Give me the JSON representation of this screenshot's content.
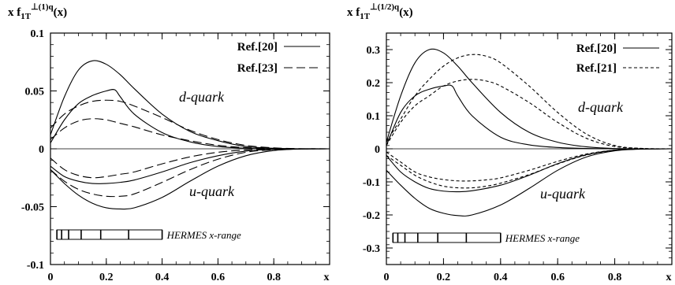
{
  "chart_data": [
    {
      "type": "line",
      "ylabel": "x f_1T^⊥(1)q(x)",
      "ylabel_main": "x f",
      "ylabel_sub": "1T",
      "ylabel_sup": "⊥(1)q",
      "ylabel_tail": "(x)",
      "xlabel": "x",
      "xlim": [
        0,
        1
      ],
      "ylim": [
        -0.1,
        0.1
      ],
      "xticks": [
        "0",
        "0.2",
        "0.4",
        "0.6",
        "0.8"
      ],
      "yticks": [
        "-0.1",
        "-0.05",
        "0",
        "0.05",
        "0.1"
      ],
      "ytick_values": [
        -0.1,
        -0.05,
        0,
        0.05,
        0.1
      ],
      "legend": [
        {
          "label": "Ref.[20]",
          "style": "solid"
        },
        {
          "label": "Ref.[23]",
          "style": "long-dash"
        }
      ],
      "annotations": [
        "d-quark",
        "u-quark"
      ],
      "hermes_label": "HERMES x-range",
      "hermes_range": [
        0.023,
        0.4
      ],
      "hermes_bins": [
        0.023,
        0.04,
        0.065,
        0.11,
        0.18,
        0.28,
        0.4
      ],
      "series": [
        {
          "style": "solid",
          "x": [
            0,
            0.05,
            0.1,
            0.15,
            0.2,
            0.25,
            0.3,
            0.4,
            0.5,
            0.6,
            0.7,
            0.8,
            0.9,
            1.0
          ],
          "y": [
            0.012,
            0.045,
            0.068,
            0.076,
            0.073,
            0.064,
            0.052,
            0.03,
            0.015,
            0.007,
            0.002,
            0.0005,
            0,
            0
          ]
        },
        {
          "style": "solid",
          "x": [
            0,
            0.05,
            0.1,
            0.15,
            0.2,
            0.23,
            0.25,
            0.3,
            0.4,
            0.5,
            0.6,
            0.7,
            0.8,
            0.9,
            1.0
          ],
          "y": [
            0.005,
            0.025,
            0.039,
            0.046,
            0.05,
            0.051,
            0.045,
            0.03,
            0.014,
            0.006,
            0.002,
            0.0005,
            0,
            0,
            0
          ]
        },
        {
          "style": "long-dash",
          "x": [
            0,
            0.05,
            0.1,
            0.15,
            0.2,
            0.25,
            0.3,
            0.4,
            0.5,
            0.6,
            0.7,
            0.8,
            0.9,
            1.0
          ],
          "y": [
            0.018,
            0.03,
            0.037,
            0.041,
            0.042,
            0.041,
            0.037,
            0.027,
            0.016,
            0.008,
            0.003,
            0.0008,
            0.0001,
            0
          ]
        },
        {
          "style": "long-dash",
          "x": [
            0,
            0.05,
            0.1,
            0.15,
            0.2,
            0.25,
            0.3,
            0.4,
            0.5,
            0.6,
            0.7,
            0.8,
            0.9,
            1.0
          ],
          "y": [
            0.008,
            0.018,
            0.024,
            0.026,
            0.025,
            0.022,
            0.019,
            0.012,
            0.007,
            0.003,
            0.001,
            0.0003,
            0,
            0
          ]
        },
        {
          "style": "solid",
          "x": [
            0,
            0.05,
            0.1,
            0.15,
            0.2,
            0.25,
            0.3,
            0.4,
            0.5,
            0.6,
            0.7,
            0.8,
            0.9,
            1.0
          ],
          "y": [
            -0.015,
            -0.024,
            -0.028,
            -0.03,
            -0.03,
            -0.029,
            -0.027,
            -0.02,
            -0.012,
            -0.006,
            -0.002,
            -0.0005,
            0,
            0
          ]
        },
        {
          "style": "solid",
          "x": [
            0,
            0.05,
            0.1,
            0.15,
            0.2,
            0.25,
            0.3,
            0.4,
            0.5,
            0.6,
            0.7,
            0.8,
            0.9,
            1.0
          ],
          "y": [
            -0.018,
            -0.03,
            -0.04,
            -0.047,
            -0.051,
            -0.052,
            -0.051,
            -0.042,
            -0.028,
            -0.015,
            -0.006,
            -0.0015,
            -0.0002,
            0
          ]
        },
        {
          "style": "long-dash",
          "x": [
            0,
            0.05,
            0.1,
            0.15,
            0.2,
            0.25,
            0.3,
            0.4,
            0.5,
            0.6,
            0.7,
            0.8,
            0.9,
            1.0
          ],
          "y": [
            -0.008,
            -0.018,
            -0.023,
            -0.025,
            -0.024,
            -0.022,
            -0.02,
            -0.013,
            -0.007,
            -0.003,
            -0.001,
            -0.0003,
            0,
            0
          ]
        },
        {
          "style": "long-dash",
          "x": [
            0,
            0.05,
            0.1,
            0.15,
            0.2,
            0.25,
            0.3,
            0.4,
            0.5,
            0.6,
            0.7,
            0.8,
            0.9,
            1.0
          ],
          "y": [
            -0.018,
            -0.028,
            -0.035,
            -0.039,
            -0.041,
            -0.041,
            -0.039,
            -0.029,
            -0.018,
            -0.009,
            -0.003,
            -0.0008,
            -0.0001,
            0
          ]
        }
      ]
    },
    {
      "type": "line",
      "ylabel": "x f_1T^⊥(1/2)q(x)",
      "ylabel_main": "x f",
      "ylabel_sub": "1T",
      "ylabel_sup": "⊥(1/2)q",
      "ylabel_tail": "(x)",
      "xlabel": "x",
      "xlim": [
        0,
        1
      ],
      "ylim": [
        -0.35,
        0.35
      ],
      "xticks": [
        "0",
        "0.2",
        "0.4",
        "0.6",
        "0.8"
      ],
      "yticks": [
        "-0.3",
        "-0.2",
        "-0.1",
        "0",
        "0.1",
        "0.2",
        "0.3"
      ],
      "ytick_values": [
        -0.3,
        -0.2,
        -0.1,
        0,
        0.1,
        0.2,
        0.3
      ],
      "legend": [
        {
          "label": "Ref.[20]",
          "style": "solid"
        },
        {
          "label": "Ref.[21]",
          "style": "short-dash"
        }
      ],
      "annotations": [
        "d-quark",
        "u-quark"
      ],
      "hermes_label": "HERMES x-range",
      "hermes_range": [
        0.023,
        0.4
      ],
      "hermes_bins": [
        0.023,
        0.04,
        0.065,
        0.11,
        0.18,
        0.28,
        0.4
      ],
      "series": [
        {
          "style": "solid",
          "x": [
            0,
            0.05,
            0.1,
            0.15,
            0.2,
            0.25,
            0.3,
            0.4,
            0.5,
            0.6,
            0.7,
            0.8,
            0.9,
            1.0
          ],
          "y": [
            0.02,
            0.16,
            0.26,
            0.3,
            0.29,
            0.25,
            0.2,
            0.11,
            0.05,
            0.02,
            0.006,
            0.001,
            0,
            0
          ]
        },
        {
          "style": "solid",
          "x": [
            0,
            0.05,
            0.1,
            0.15,
            0.2,
            0.23,
            0.25,
            0.3,
            0.4,
            0.5,
            0.6,
            0.7,
            0.8,
            0.9,
            1.0
          ],
          "y": [
            0.01,
            0.11,
            0.16,
            0.18,
            0.19,
            0.19,
            0.16,
            0.1,
            0.035,
            0.012,
            0.004,
            0.001,
            0,
            0,
            0
          ]
        },
        {
          "style": "short-dash",
          "x": [
            0,
            0.05,
            0.1,
            0.15,
            0.2,
            0.25,
            0.3,
            0.35,
            0.4,
            0.5,
            0.6,
            0.7,
            0.8,
            0.9,
            1.0
          ],
          "y": [
            0.02,
            0.09,
            0.16,
            0.21,
            0.25,
            0.275,
            0.285,
            0.28,
            0.26,
            0.19,
            0.11,
            0.045,
            0.01,
            0.001,
            0
          ]
        },
        {
          "style": "short-dash",
          "x": [
            0,
            0.05,
            0.1,
            0.15,
            0.2,
            0.25,
            0.3,
            0.35,
            0.4,
            0.5,
            0.6,
            0.7,
            0.8,
            0.9,
            1.0
          ],
          "y": [
            0.01,
            0.08,
            0.13,
            0.16,
            0.19,
            0.205,
            0.21,
            0.205,
            0.19,
            0.14,
            0.08,
            0.032,
            0.007,
            0.001,
            0
          ]
        },
        {
          "style": "solid",
          "x": [
            0,
            0.05,
            0.1,
            0.15,
            0.2,
            0.25,
            0.3,
            0.4,
            0.5,
            0.6,
            0.7,
            0.8,
            0.9,
            1.0
          ],
          "y": [
            -0.02,
            -0.07,
            -0.1,
            -0.12,
            -0.128,
            -0.13,
            -0.127,
            -0.11,
            -0.08,
            -0.045,
            -0.018,
            -0.004,
            -0.0005,
            0
          ]
        },
        {
          "style": "solid",
          "x": [
            0,
            0.05,
            0.1,
            0.15,
            0.2,
            0.25,
            0.3,
            0.4,
            0.5,
            0.6,
            0.7,
            0.8,
            0.9,
            1.0
          ],
          "y": [
            -0.065,
            -0.11,
            -0.15,
            -0.18,
            -0.195,
            -0.202,
            -0.2,
            -0.17,
            -0.12,
            -0.065,
            -0.025,
            -0.006,
            -0.0008,
            0
          ]
        },
        {
          "style": "short-dash",
          "x": [
            0,
            0.05,
            0.1,
            0.15,
            0.2,
            0.25,
            0.3,
            0.35,
            0.4,
            0.5,
            0.6,
            0.7,
            0.8,
            0.9,
            1.0
          ],
          "y": [
            -0.01,
            -0.04,
            -0.07,
            -0.085,
            -0.093,
            -0.097,
            -0.097,
            -0.094,
            -0.088,
            -0.065,
            -0.038,
            -0.016,
            -0.004,
            -0.0005,
            0
          ]
        },
        {
          "style": "short-dash",
          "x": [
            0,
            0.05,
            0.1,
            0.15,
            0.2,
            0.25,
            0.3,
            0.35,
            0.4,
            0.5,
            0.6,
            0.7,
            0.8,
            0.9,
            1.0
          ],
          "y": [
            -0.02,
            -0.05,
            -0.08,
            -0.1,
            -0.113,
            -0.118,
            -0.118,
            -0.113,
            -0.104,
            -0.078,
            -0.046,
            -0.019,
            -0.005,
            -0.0006,
            0
          ]
        }
      ]
    }
  ]
}
